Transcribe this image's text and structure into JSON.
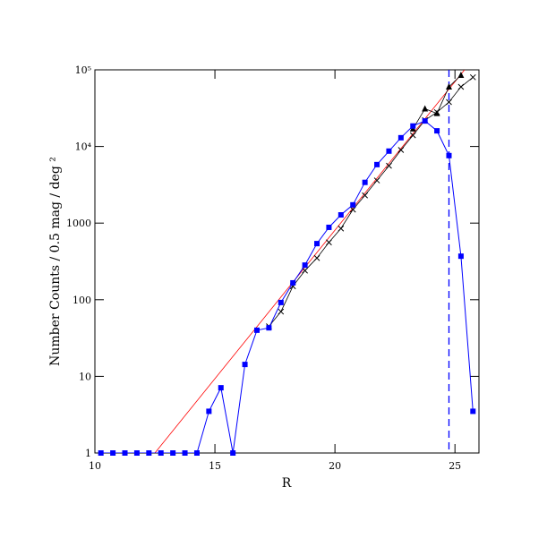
{
  "chart_data": {
    "type": "scatter",
    "xlabel": "R",
    "ylabel": "Number Counts / 0.5 mag / deg ²",
    "xlim": [
      10,
      26
    ],
    "ylim": [
      1,
      100000
    ],
    "log_y": true,
    "xticks": [
      10,
      15,
      20,
      25
    ],
    "yticks": [
      1,
      10,
      100,
      1000,
      {
        "value": 10000,
        "label": "10⁴"
      },
      {
        "value": 100000,
        "label": "10⁵"
      }
    ],
    "vline": {
      "x": 24.75,
      "color": "#0000ff"
    },
    "series": [
      {
        "color": "#ff0000",
        "marker": "none",
        "x": [
          12.5,
          25.4
        ],
        "values": [
          1,
          100000
        ]
      },
      {
        "color": "#000000",
        "marker": "cross",
        "x": [
          17.25,
          17.75,
          18.25,
          18.75,
          19.25,
          19.75,
          20.25,
          20.75,
          21.25,
          21.75,
          22.25,
          22.75,
          23.25,
          23.75,
          24.25,
          24.75,
          25.25,
          25.75
        ],
        "values": [
          45,
          70,
          150,
          240,
          350,
          560,
          850,
          1500,
          2300,
          3600,
          5600,
          9000,
          14000,
          22000,
          28000,
          38000,
          60000,
          80000
        ]
      },
      {
        "color": "#000000",
        "marker": "triangle",
        "x": [
          23.25,
          23.75,
          24.25,
          24.75,
          25.25
        ],
        "values": [
          17000,
          31000,
          27000,
          60000,
          85000
        ]
      },
      {
        "color": "#0000ff",
        "marker": "square",
        "x": [
          10.25,
          10.75,
          11.25,
          11.75,
          12.25,
          12.75,
          13.25,
          13.75,
          14.25,
          14.75,
          15.25,
          15.75,
          16.25,
          16.75,
          17.25,
          17.75,
          18.25,
          18.75,
          19.25,
          19.75,
          20.25,
          20.75,
          21.25,
          21.75,
          22.25,
          22.75,
          23.25,
          23.75,
          24.25,
          24.75,
          25.25,
          25.75
        ],
        "values": [
          1,
          1,
          1,
          1,
          1,
          1,
          1,
          1,
          1,
          3.5,
          7.1,
          1,
          14.3,
          40,
          43,
          92,
          166,
          283,
          540,
          880,
          1280,
          1730,
          3400,
          5800,
          8700,
          13000,
          18500,
          21500,
          16000,
          7600,
          370,
          3.5
        ]
      }
    ]
  }
}
